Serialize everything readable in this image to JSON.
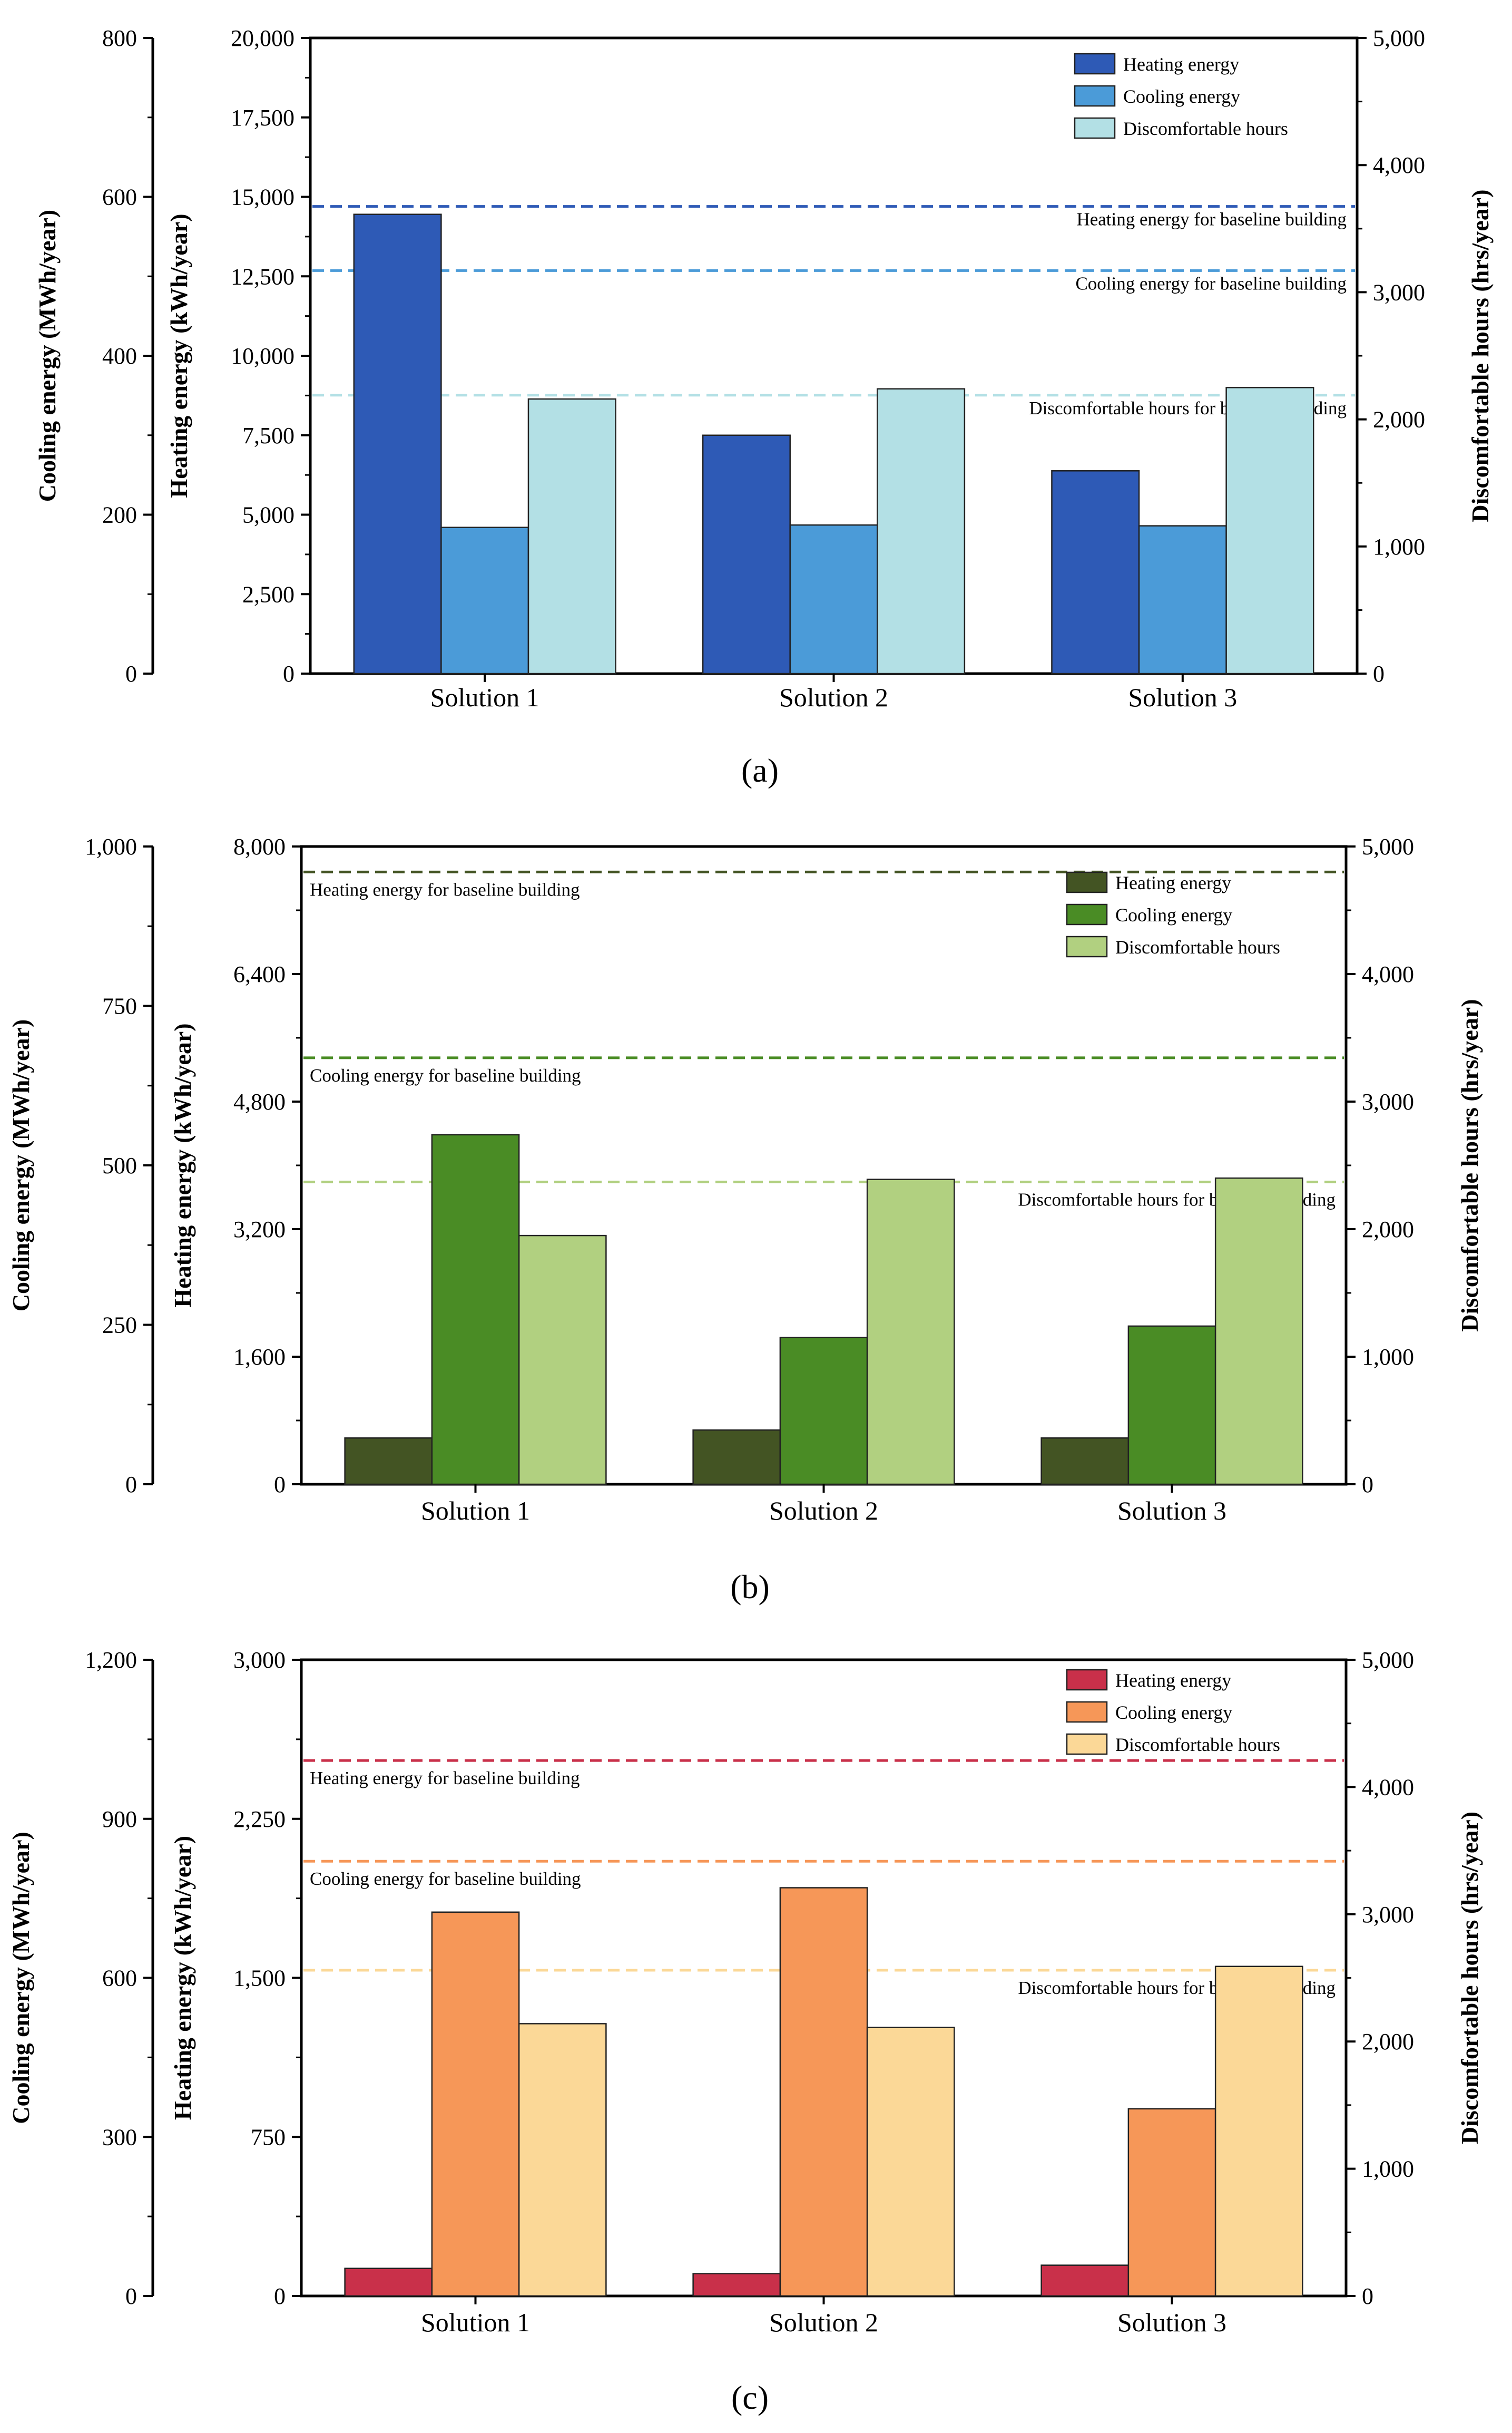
{
  "chart_data": [
    {
      "type": "bar",
      "panel_label": "(a)",
      "categories": [
        "Solution 1",
        "Solution 2",
        "Solution 3"
      ],
      "series": [
        {
          "name": "Heating energy",
          "axis": "heating",
          "color": "#2e5ab6",
          "values": [
            14450,
            7500,
            6380
          ]
        },
        {
          "name": "Cooling energy",
          "axis": "cooling",
          "color": "#4b9bd8",
          "values": [
            184,
            187,
            186
          ]
        },
        {
          "name": "Discomfortable hours",
          "axis": "discomfort",
          "color": "#b3e0e5",
          "values": [
            2160,
            2240,
            2250
          ]
        }
      ],
      "baselines": [
        {
          "label": "Heating energy for baseline building",
          "axis": "heating",
          "value": 14700,
          "color": "#2e5ab6",
          "label_align": "right"
        },
        {
          "label": "Cooling energy for baseline building",
          "axis": "heating",
          "value": 12680,
          "color": "#4b9bd8",
          "label_align": "right"
        },
        {
          "label": "Discomfortable hours for baseline building",
          "axis": "discomfort",
          "value": 2190,
          "color": "#b3e0e5",
          "label_align": "right"
        }
      ],
      "axes": {
        "cooling": {
          "label": "Cooling energy (MWh/year)",
          "ylim": [
            0,
            800
          ],
          "ticks": [
            "0",
            "200",
            "400",
            "600",
            "800"
          ]
        },
        "heating": {
          "label": "Heating energy (kWh/year)",
          "ylim": [
            0,
            20000
          ],
          "ticks": [
            "0",
            "2,500",
            "5,000",
            "7,500",
            "10,000",
            "12,500",
            "15,000",
            "17,500",
            "20,000"
          ]
        },
        "discomfort": {
          "label": "Discomfortable hours (hrs/year)",
          "ylim": [
            0,
            5000
          ],
          "ticks": [
            "0",
            "1,000",
            "2,000",
            "3,000",
            "4,000",
            "5,000"
          ]
        }
      },
      "legend_position": "top-right",
      "grid": false
    },
    {
      "type": "bar",
      "panel_label": "(b)",
      "categories": [
        "Solution 1",
        "Solution 2",
        "Solution 3"
      ],
      "series": [
        {
          "name": "Heating energy",
          "axis": "heating",
          "color": "#435423",
          "values": [
            580,
            680,
            580
          ]
        },
        {
          "name": "Cooling energy",
          "axis": "cooling",
          "color": "#4a8c25",
          "values": [
            548,
            230,
            248
          ]
        },
        {
          "name": "Discomfortable hours",
          "axis": "discomfort",
          "color": "#b1d080",
          "values": [
            1950,
            2390,
            2400
          ]
        }
      ],
      "baselines": [
        {
          "label": "Heating energy for baseline building",
          "axis": "heating",
          "value": 7680,
          "color": "#435423",
          "label_align": "left"
        },
        {
          "label": "Cooling energy for baseline building",
          "axis": "heating",
          "value": 5350,
          "color": "#4a8c25",
          "label_align": "left"
        },
        {
          "label": "Discomfortable hours for baseline building",
          "axis": "discomfort",
          "value": 2370,
          "color": "#b1d080",
          "label_align": "right"
        }
      ],
      "axes": {
        "cooling": {
          "label": "Cooling energy (MWh/year)",
          "ylim": [
            0,
            1000
          ],
          "ticks": [
            "0",
            "250",
            "500",
            "750",
            "1,000"
          ]
        },
        "heating": {
          "label": "Heating energy (kWh/year)",
          "ylim": [
            0,
            8000
          ],
          "ticks": [
            "0",
            "1,600",
            "3,200",
            "4,800",
            "6,400",
            "8,000"
          ]
        },
        "discomfort": {
          "label": "Discomfortable hours (hrs/year)",
          "ylim": [
            0,
            5000
          ],
          "ticks": [
            "0",
            "1,000",
            "2,000",
            "3,000",
            "4,000",
            "5,000"
          ]
        }
      },
      "legend_position": "top-right",
      "grid": false
    },
    {
      "type": "bar",
      "panel_label": "(c)",
      "categories": [
        "Solution 1",
        "Solution 2",
        "Solution 3"
      ],
      "series": [
        {
          "name": "Heating energy",
          "axis": "heating",
          "color": "#c9304a",
          "values": [
            130,
            105,
            145
          ]
        },
        {
          "name": "Cooling energy",
          "axis": "cooling",
          "color": "#f69758",
          "values": [
            724,
            770,
            353
          ]
        },
        {
          "name": "Discomfortable hours",
          "axis": "discomfort",
          "color": "#fbd897",
          "values": [
            2140,
            2110,
            2590
          ]
        }
      ],
      "baselines": [
        {
          "label": "Heating energy for baseline building",
          "axis": "heating",
          "value": 2525,
          "color": "#c9304a",
          "label_align": "left"
        },
        {
          "label": "Cooling energy for baseline building",
          "axis": "heating",
          "value": 2050,
          "color": "#f69758",
          "label_align": "left"
        },
        {
          "label": "Discomfortable hours for baseline building",
          "axis": "discomfort",
          "value": 2560,
          "color": "#fbd897",
          "label_align": "right"
        }
      ],
      "axes": {
        "cooling": {
          "label": "Cooling energy (MWh/year)",
          "ylim": [
            0,
            1200
          ],
          "ticks": [
            "0",
            "300",
            "600",
            "900",
            "1,200"
          ]
        },
        "heating": {
          "label": "Heating energy (kWh/year)",
          "ylim": [
            0,
            3000
          ],
          "ticks": [
            "0",
            "750",
            "1,500",
            "2,250",
            "3,000"
          ]
        },
        "discomfort": {
          "label": "Discomfortable hours (hrs/year)",
          "ylim": [
            0,
            5000
          ],
          "ticks": [
            "0",
            "1,000",
            "2,000",
            "3,000",
            "4,000",
            "5,000"
          ]
        }
      },
      "legend_position": "top-right",
      "grid": false
    }
  ]
}
